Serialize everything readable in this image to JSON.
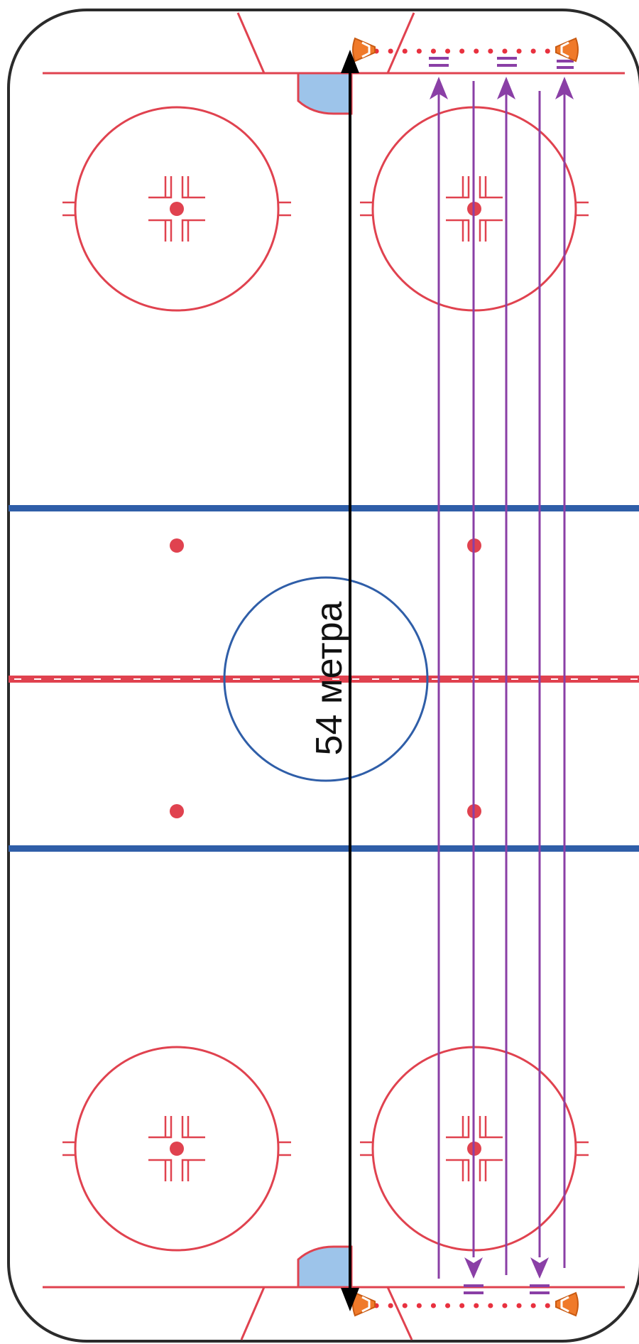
{
  "diagram": {
    "measurement_label": "54 метра",
    "colors": {
      "rink_outline": "#2b2b2b",
      "red_lines": "#e0424f",
      "blue_lines": "#2f5ea8",
      "crease_fill": "#9dc4ea",
      "drill_paths": "#8a3fa6",
      "cones": "#f07a2a",
      "cone_dots": "#e8313f",
      "measure_arrow": "#000000"
    },
    "icons": {
      "cone": "cone-icon",
      "path_arrow": "arrowhead-icon"
    }
  }
}
